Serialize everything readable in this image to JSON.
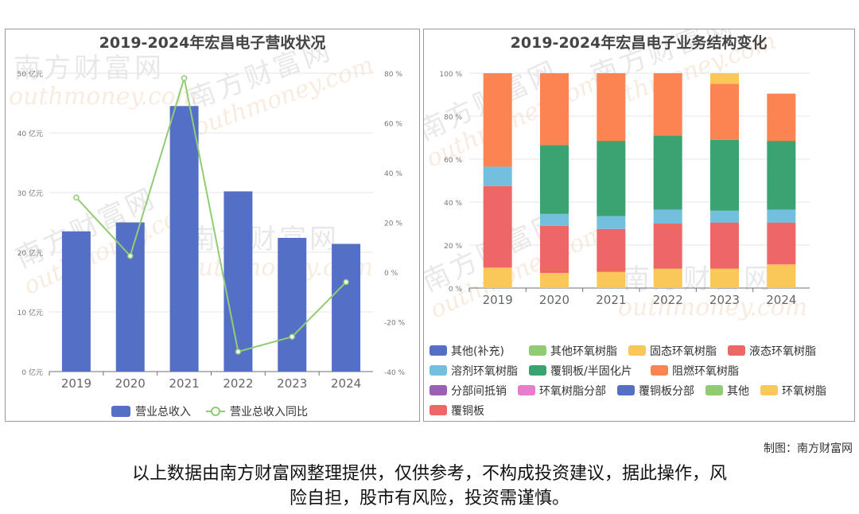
{
  "footer": {
    "credit": "制图：南方财富网",
    "disclaimer_line1": "以上数据由南方财富网整理提供，仅供参考，不构成投资建议，据此操作，风",
    "disclaimer_line2": "险自担，股市有风险，投资需谨慎。"
  },
  "watermark": {
    "cn": "南方财富网",
    "en": "outhmoney.com"
  },
  "colors": {
    "bar_blue": "#5470c6",
    "line_green": "#91cc75"
  },
  "chart_data": [
    {
      "type": "bar",
      "title": "2019-2024年宏昌电子营收状况",
      "categories": [
        "2019",
        "2020",
        "2021",
        "2022",
        "2023",
        "2024"
      ],
      "ylim": [
        0,
        50
      ],
      "y_ticks": [
        "0 亿元",
        "10 亿元",
        "20 亿元",
        "30 亿元",
        "40 亿元",
        "50 亿元"
      ],
      "y2lim": [
        -40,
        80
      ],
      "y2_ticks": [
        "-40 %",
        "-20 %",
        "0 %",
        "20 %",
        "40 %",
        "60 %",
        "80 %"
      ],
      "series": [
        {
          "name": "营业总收入",
          "type": "bar",
          "color": "#5470c6",
          "values": [
            23.5,
            25.0,
            44.5,
            30.2,
            22.4,
            21.4
          ]
        },
        {
          "name": "营业总收入同比",
          "type": "line",
          "color": "#91cc75",
          "values": [
            30,
            6.5,
            78,
            -32,
            -26,
            -4
          ]
        }
      ],
      "legend_position": "bottom",
      "grid": true
    },
    {
      "type": "bar",
      "stacked": true,
      "title": "2019-2024年宏昌电子业务结构变化",
      "categories": [
        "2019",
        "2020",
        "2021",
        "2022",
        "2023",
        "2024"
      ],
      "ylim": [
        0,
        100
      ],
      "y_ticks": [
        "0 %",
        "20 %",
        "40 %",
        "60 %",
        "80 %",
        "100 %"
      ],
      "series": [
        {
          "name": "其他(补充)",
          "color": "#5470c6",
          "values": [
            0,
            0,
            0,
            0,
            0,
            0
          ]
        },
        {
          "name": "其他环氧树脂",
          "color": "#91cc75",
          "values": [
            0,
            0,
            0,
            0,
            0,
            0
          ]
        },
        {
          "name": "固态环氧树脂",
          "color": "#fac858",
          "values": [
            9.5,
            7,
            7.5,
            9,
            9,
            11
          ]
        },
        {
          "name": "液态环氧树脂",
          "color": "#ee6666",
          "values": [
            38,
            22,
            20,
            21,
            21.5,
            19.5
          ]
        },
        {
          "name": "溶剂环氧树脂",
          "color": "#73c0de",
          "values": [
            9,
            5.5,
            6,
            6.5,
            5.5,
            6
          ]
        },
        {
          "name": "覆铜板/半固化片",
          "color": "#3ba272",
          "values": [
            0,
            32,
            35,
            34.5,
            33,
            32
          ]
        },
        {
          "name": "阻燃环氧树脂",
          "color": "#fc8452",
          "values": [
            43.5,
            33.5,
            31.5,
            29,
            26,
            22
          ]
        },
        {
          "name": "分部间抵销",
          "color": "#9a60b4",
          "values": [
            0,
            0,
            0,
            0,
            0,
            0
          ]
        },
        {
          "name": "环氧树脂分部",
          "color": "#ea7ccc",
          "values": [
            0,
            0,
            0,
            0,
            0,
            0
          ]
        },
        {
          "name": "覆铜板分部",
          "color": "#5470c6",
          "values": [
            0,
            0,
            0,
            0,
            0,
            0
          ]
        },
        {
          "name": "其他",
          "color": "#91cc75",
          "values": [
            0,
            0,
            0,
            0,
            0,
            0
          ]
        },
        {
          "name": "环氧树脂",
          "color": "#fac858",
          "values": [
            0,
            0,
            0,
            0,
            5,
            0
          ]
        },
        {
          "name": "覆铜板",
          "color": "#ee6666",
          "values": [
            0,
            0,
            0,
            0,
            0,
            0
          ]
        }
      ],
      "legend_position": "bottom",
      "grid": true
    }
  ]
}
